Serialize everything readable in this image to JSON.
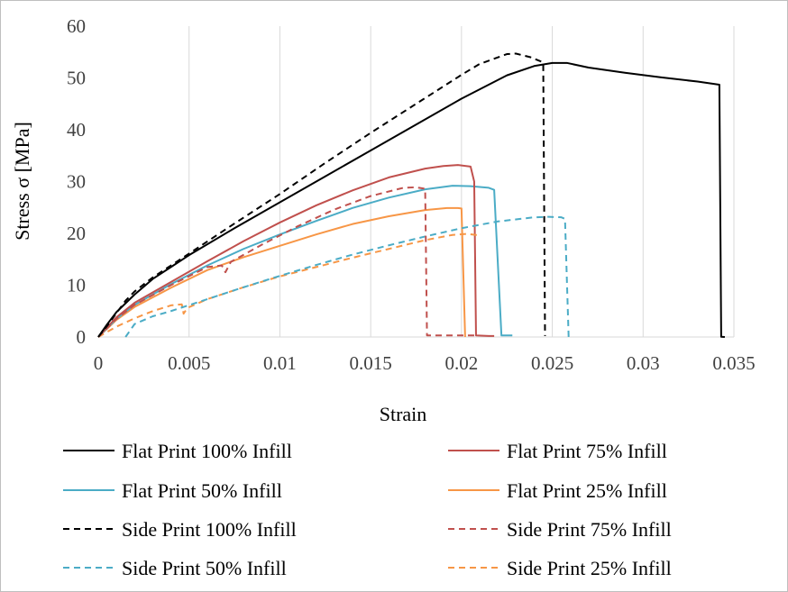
{
  "chart_data": {
    "type": "line",
    "title": "",
    "xlabel": "Strain",
    "ylabel": "Stress σ [MPa]",
    "xlim": [
      0,
      0.035
    ],
    "ylim": [
      0,
      60
    ],
    "x_ticks": [
      0,
      0.005,
      0.01,
      0.015,
      0.02,
      0.025,
      0.03,
      0.035
    ],
    "x_tick_labels": [
      "0",
      "0.005",
      "0.01",
      "0.015",
      "0.02",
      "0.025",
      "0.03",
      "0.035"
    ],
    "y_ticks": [
      0,
      10,
      20,
      30,
      40,
      50,
      60
    ],
    "y_tick_labels": [
      "0",
      "10",
      "20",
      "30",
      "40",
      "50",
      "60"
    ],
    "grid": "vertical",
    "legend_position": "bottom",
    "series": [
      {
        "name": "Flat Print 100% Infill",
        "color": "#000000",
        "dash": "solid",
        "points": [
          [
            0,
            0
          ],
          [
            0.0005,
            2.5
          ],
          [
            0.001,
            4.8
          ],
          [
            0.002,
            8.2
          ],
          [
            0.003,
            11.2
          ],
          [
            0.004,
            13.5
          ],
          [
            0.005,
            15.8
          ],
          [
            0.0075,
            21.0
          ],
          [
            0.01,
            26.0
          ],
          [
            0.0125,
            31.0
          ],
          [
            0.015,
            36.0
          ],
          [
            0.0175,
            41.0
          ],
          [
            0.02,
            46.0
          ],
          [
            0.0225,
            50.5
          ],
          [
            0.024,
            52.3
          ],
          [
            0.025,
            52.9
          ],
          [
            0.0258,
            52.9
          ],
          [
            0.027,
            52.0
          ],
          [
            0.029,
            51.0
          ],
          [
            0.031,
            50.1
          ],
          [
            0.033,
            49.3
          ],
          [
            0.0342,
            48.7
          ],
          [
            0.0343,
            0.05
          ],
          [
            0.0345,
            0
          ]
        ]
      },
      {
        "name": "Flat Print 75% Infill",
        "color": "#c0504d",
        "dash": "solid",
        "points": [
          [
            0,
            0
          ],
          [
            0.001,
            3.8
          ],
          [
            0.002,
            6.6
          ],
          [
            0.004,
            10.6
          ],
          [
            0.006,
            14.6
          ],
          [
            0.008,
            18.5
          ],
          [
            0.01,
            22.1
          ],
          [
            0.012,
            25.4
          ],
          [
            0.014,
            28.3
          ],
          [
            0.016,
            30.8
          ],
          [
            0.018,
            32.5
          ],
          [
            0.019,
            33.0
          ],
          [
            0.0198,
            33.2
          ],
          [
            0.0205,
            32.9
          ],
          [
            0.0207,
            30.0
          ],
          [
            0.0208,
            0.3
          ],
          [
            0.0215,
            0.2
          ],
          [
            0.0218,
            0.2
          ]
        ]
      },
      {
        "name": "Flat Print 50% Infill",
        "color": "#4bacc6",
        "dash": "solid",
        "points": [
          [
            0,
            0
          ],
          [
            0.001,
            3.5
          ],
          [
            0.002,
            6.2
          ],
          [
            0.004,
            10.2
          ],
          [
            0.006,
            13.8
          ],
          [
            0.008,
            17.0
          ],
          [
            0.01,
            19.8
          ],
          [
            0.012,
            22.4
          ],
          [
            0.014,
            24.9
          ],
          [
            0.016,
            26.9
          ],
          [
            0.018,
            28.5
          ],
          [
            0.0195,
            29.2
          ],
          [
            0.0205,
            29.1
          ],
          [
            0.0215,
            28.8
          ],
          [
            0.0218,
            28.4
          ],
          [
            0.0222,
            0.3
          ],
          [
            0.0228,
            0.3
          ]
        ]
      },
      {
        "name": "Flat Print 25% Infill",
        "color": "#f79646",
        "dash": "solid",
        "points": [
          [
            0,
            0
          ],
          [
            0.001,
            3.3
          ],
          [
            0.002,
            5.8
          ],
          [
            0.004,
            9.5
          ],
          [
            0.006,
            12.9
          ],
          [
            0.008,
            15.4
          ],
          [
            0.01,
            17.6
          ],
          [
            0.012,
            19.8
          ],
          [
            0.014,
            21.8
          ],
          [
            0.016,
            23.3
          ],
          [
            0.018,
            24.5
          ],
          [
            0.0192,
            24.9
          ],
          [
            0.0198,
            24.9
          ],
          [
            0.02,
            24.8
          ],
          [
            0.0202,
            0
          ]
        ]
      },
      {
        "name": "Side Print 100% Infill",
        "color": "#000000",
        "dash": "dashed",
        "points": [
          [
            0,
            0
          ],
          [
            0.0005,
            2.2
          ],
          [
            0.001,
            4.6
          ],
          [
            0.0015,
            7.0
          ],
          [
            0.002,
            8.8
          ],
          [
            0.003,
            11.5
          ],
          [
            0.004,
            13.8
          ],
          [
            0.005,
            16.1
          ],
          [
            0.0075,
            21.9
          ],
          [
            0.01,
            27.6
          ],
          [
            0.0125,
            33.6
          ],
          [
            0.015,
            39.4
          ],
          [
            0.0175,
            45.0
          ],
          [
            0.02,
            50.6
          ],
          [
            0.021,
            52.7
          ],
          [
            0.0225,
            54.6
          ],
          [
            0.023,
            54.7
          ],
          [
            0.0238,
            54.0
          ],
          [
            0.0245,
            53.0
          ],
          [
            0.0246,
            0.2
          ]
        ]
      },
      {
        "name": "Side Print 75% Infill",
        "color": "#c0504d",
        "dash": "dashed",
        "points": [
          [
            0,
            0
          ],
          [
            0.001,
            3.5
          ],
          [
            0.002,
            6.2
          ],
          [
            0.004,
            10.0
          ],
          [
            0.006,
            13.5
          ],
          [
            0.0068,
            13.8
          ],
          [
            0.007,
            12.5
          ],
          [
            0.0073,
            14.5
          ],
          [
            0.009,
            17.8
          ],
          [
            0.011,
            21.4
          ],
          [
            0.013,
            24.6
          ],
          [
            0.015,
            27.2
          ],
          [
            0.0168,
            28.8
          ],
          [
            0.0175,
            28.9
          ],
          [
            0.018,
            28.6
          ],
          [
            0.0181,
            0.3
          ],
          [
            0.02,
            0.3
          ],
          [
            0.0208,
            0.3
          ]
        ]
      },
      {
        "name": "Side Print 50% Infill",
        "color": "#4bacc6",
        "dash": "dashed",
        "points": [
          [
            0.0015,
            0
          ],
          [
            0.002,
            2.5
          ],
          [
            0.003,
            4.0
          ],
          [
            0.004,
            5.0
          ],
          [
            0.006,
            7.3
          ],
          [
            0.008,
            9.6
          ],
          [
            0.01,
            11.8
          ],
          [
            0.012,
            13.9
          ],
          [
            0.014,
            15.9
          ],
          [
            0.016,
            17.7
          ],
          [
            0.018,
            19.4
          ],
          [
            0.02,
            21.0
          ],
          [
            0.022,
            22.3
          ],
          [
            0.024,
            23.1
          ],
          [
            0.0248,
            23.2
          ],
          [
            0.0255,
            23.1
          ],
          [
            0.0257,
            22.8
          ],
          [
            0.0259,
            0
          ]
        ]
      },
      {
        "name": "Side Print 25% Infill",
        "color": "#f79646",
        "dash": "dashed",
        "points": [
          [
            0,
            0
          ],
          [
            0.001,
            2.0
          ],
          [
            0.002,
            3.6
          ],
          [
            0.003,
            5.0
          ],
          [
            0.004,
            6.1
          ],
          [
            0.0046,
            6.3
          ],
          [
            0.0047,
            4.5
          ],
          [
            0.0049,
            5.6
          ],
          [
            0.006,
            7.3
          ],
          [
            0.008,
            9.6
          ],
          [
            0.01,
            11.7
          ],
          [
            0.012,
            13.5
          ],
          [
            0.014,
            15.3
          ],
          [
            0.016,
            17.0
          ],
          [
            0.018,
            18.7
          ],
          [
            0.0195,
            19.7
          ],
          [
            0.0203,
            19.9
          ],
          [
            0.021,
            19.6
          ]
        ]
      }
    ]
  }
}
